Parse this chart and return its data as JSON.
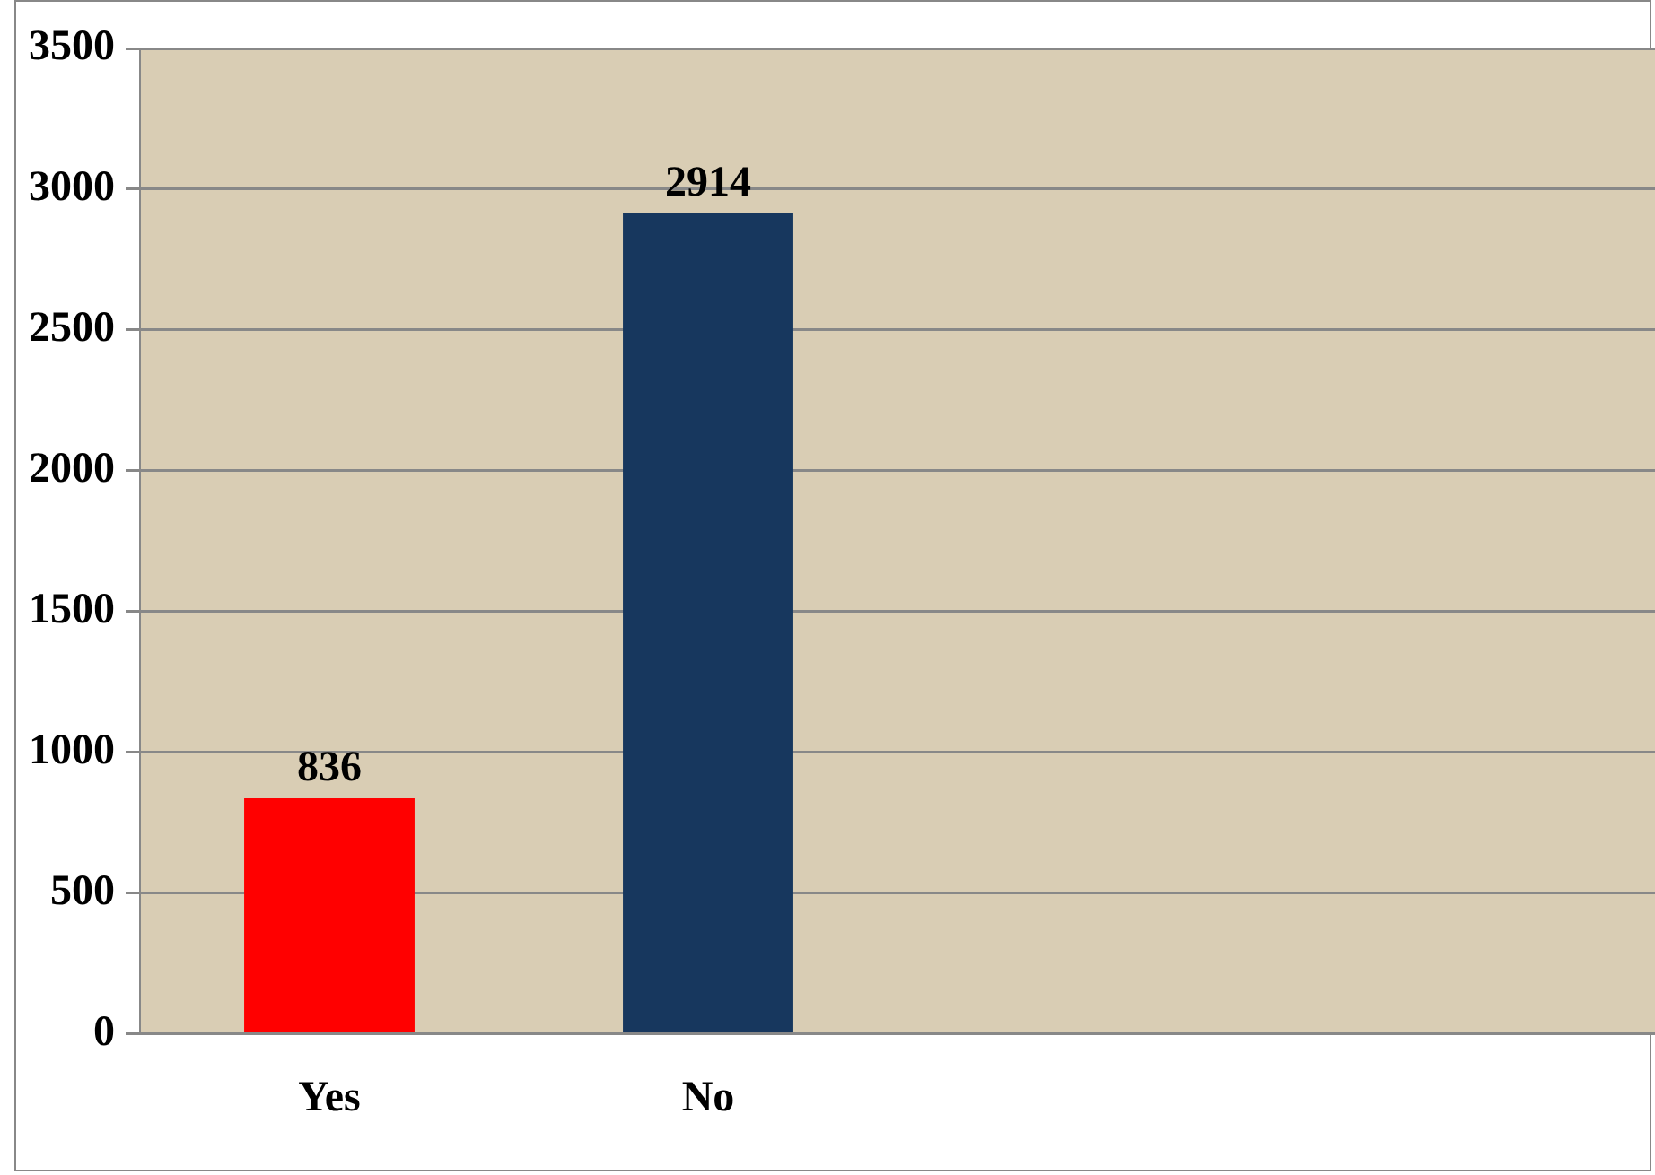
{
  "chart_data": {
    "type": "bar",
    "categories": [
      "Yes",
      "No",
      null,
      null
    ],
    "values": [
      836,
      2914,
      null,
      null
    ],
    "colors": [
      "#ff0000",
      "#17375e",
      null,
      null
    ],
    "ylim": [
      0,
      3500
    ],
    "yticks": [
      0,
      500,
      1000,
      1500,
      2000,
      2500,
      3000,
      3500
    ],
    "grid": "y",
    "data_labels": true,
    "legend": false
  }
}
